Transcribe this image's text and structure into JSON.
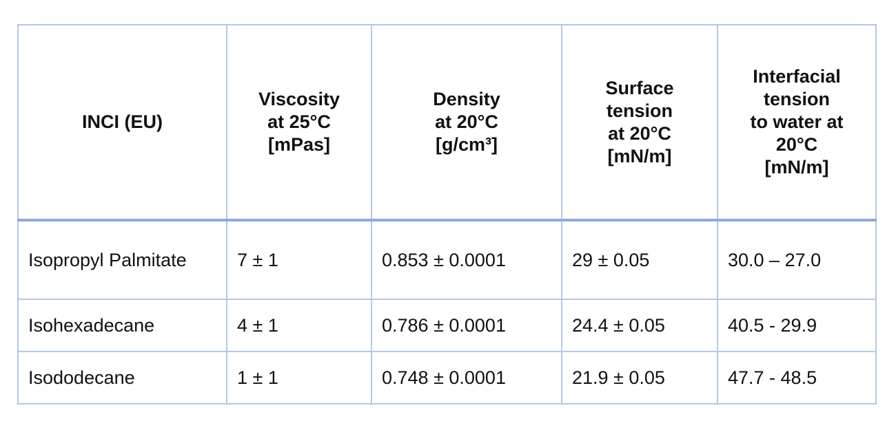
{
  "table": {
    "headers": [
      [
        "INCI (EU)"
      ],
      [
        "Viscosity",
        "at 25°C",
        "[mPas]"
      ],
      [
        "Density",
        "at 20°C",
        "[g/cm³]"
      ],
      [
        "Surface",
        "tension",
        "at 20°C",
        "[mN/m]"
      ],
      [
        "Interfacial",
        "tension",
        "to water at",
        "20°C",
        "[mN/m]"
      ]
    ],
    "rows": [
      [
        "Isopropyl Palmitate",
        "7 ± 1",
        "0.853 ± 0.0001",
        "29 ± 0.05",
        "30.0 – 27.0"
      ],
      [
        "Isohexadecane",
        "4 ± 1",
        "0.786 ± 0.0001",
        "24.4 ± 0.05",
        "40.5 - 29.9"
      ],
      [
        "Isododecane",
        "1 ± 1",
        "0.748 ± 0.0001",
        "21.9 ± 0.05",
        "47.7 - 48.5"
      ]
    ]
  },
  "colors": {
    "border": "#b4c7e7",
    "header_separator": "#8eaadb",
    "text": "#111111"
  }
}
